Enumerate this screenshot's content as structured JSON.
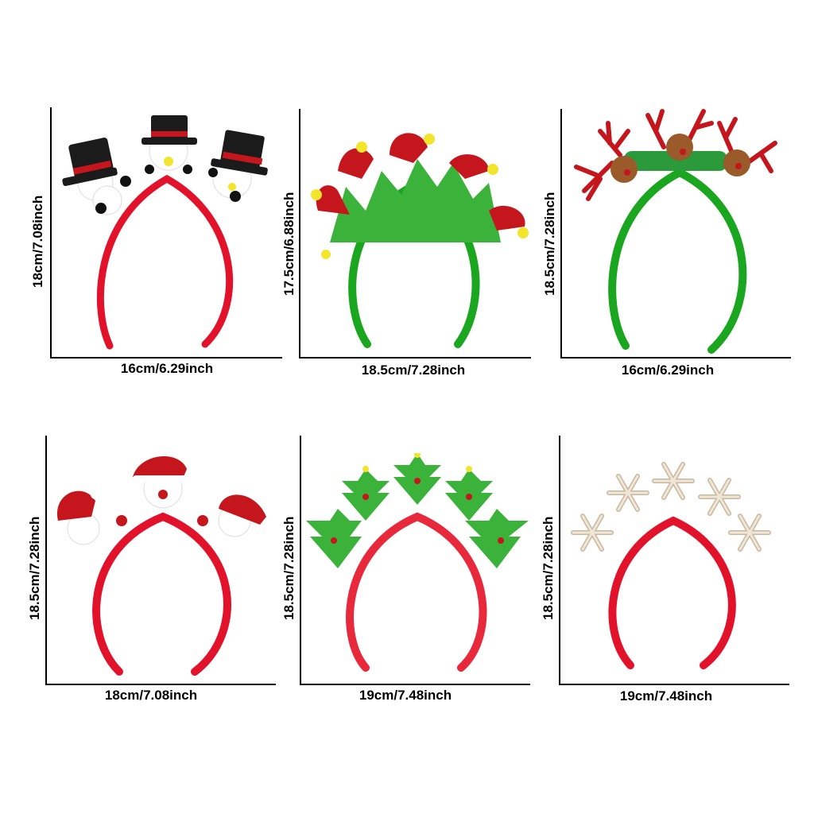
{
  "products": [
    {
      "id": "snowman-top-hat",
      "width": "16cm/6.29inch",
      "height": "18cm/7.08inch"
    },
    {
      "id": "elf-hat",
      "width": "18.5cm/7.28inch",
      "height": "17.5cm/6.88inch"
    },
    {
      "id": "reindeer",
      "width": "16cm/6.29inch",
      "height": "18.5cm/7.28inch"
    },
    {
      "id": "santa-snowman",
      "width": "18cm/7.08inch",
      "height": "18.5cm/7.28inch"
    },
    {
      "id": "christmas-tree",
      "width": "19cm/7.48inch",
      "height": "18.5cm/7.28inch"
    },
    {
      "id": "snowflake",
      "width": "19cm/7.48inch",
      "height": "18.5cm/7.28inch"
    }
  ],
  "colors": {
    "band_red": "#e3122b",
    "band_green": "#1aa61e",
    "band_red_pink": "#e8293b",
    "felt_black": "#1b1b1b",
    "glitter_red": "#c4161c",
    "glitter_green": "#3bb33a",
    "pom_yellow": "#f2e52b",
    "wood": "#efe6d6"
  }
}
